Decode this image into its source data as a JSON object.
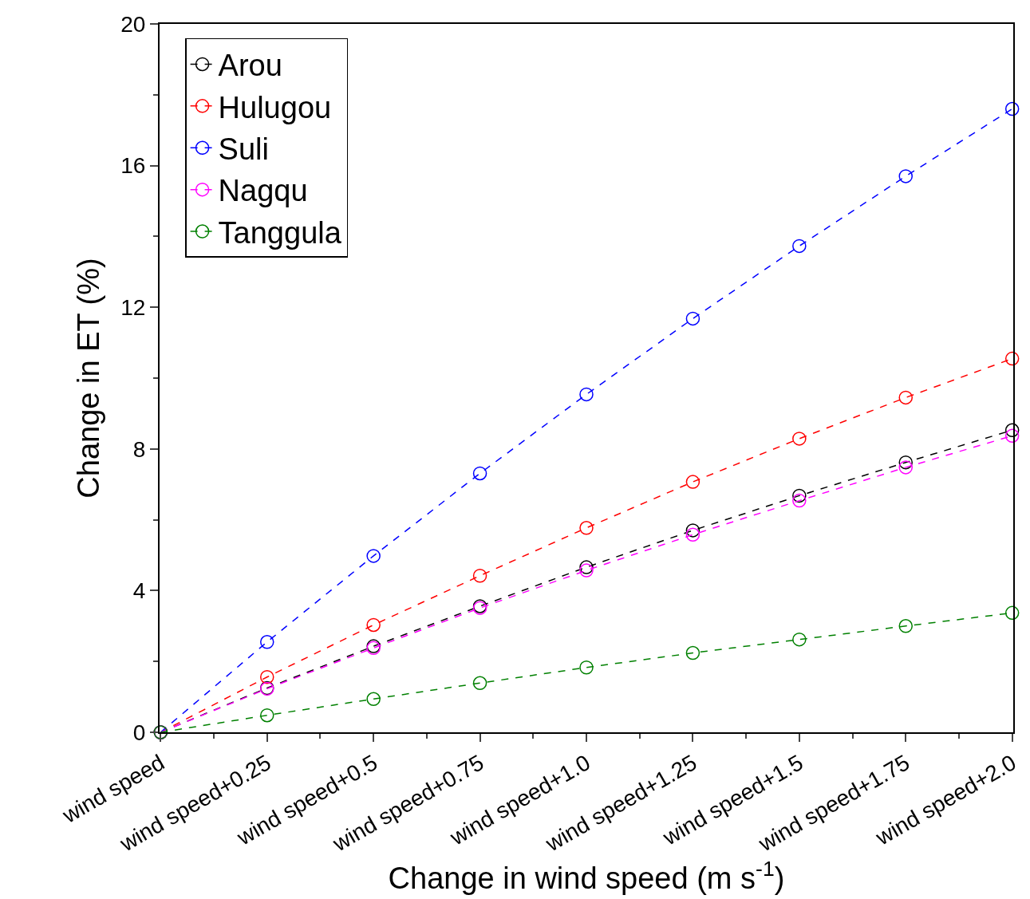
{
  "chart_data": {
    "type": "line",
    "xlabel": "Change in wind speed (m s$^{-1}$)",
    "ylabel": "Change in ET (%)",
    "categories": [
      "wind speed",
      "wind speed+0.25",
      "wind speed+0.5",
      "wind speed+0.75",
      "wind speed+1.0",
      "wind speed+1.25",
      "wind speed+1.5",
      "wind speed+1.75",
      "wind speed+2.0"
    ],
    "series": [
      {
        "name": "Arou",
        "color": "#000000",
        "values": [
          0,
          1.25,
          2.43,
          3.56,
          4.66,
          5.7,
          6.68,
          7.62,
          8.53
        ]
      },
      {
        "name": "Hulugou",
        "color": "#ff0000",
        "values": [
          0,
          1.56,
          3.03,
          4.42,
          5.77,
          7.07,
          8.29,
          9.45,
          10.55
        ]
      },
      {
        "name": "Suli",
        "color": "#0000ff",
        "values": [
          0,
          2.55,
          4.98,
          7.31,
          9.54,
          11.68,
          13.73,
          15.7,
          17.6
        ]
      },
      {
        "name": "Nagqu",
        "color": "#ff00ff",
        "values": [
          0,
          1.23,
          2.38,
          3.51,
          4.57,
          5.58,
          6.54,
          7.48,
          8.37
        ]
      },
      {
        "name": "Tanggula",
        "color": "#008000",
        "values": [
          0,
          0.48,
          0.94,
          1.39,
          1.83,
          2.24,
          2.62,
          3.0,
          3.37
        ]
      }
    ],
    "ylim": [
      0,
      20
    ],
    "yticks": [
      0,
      4,
      8,
      12,
      16,
      20
    ],
    "legend": "top left",
    "marker": "circle",
    "line_style": "dashed"
  }
}
